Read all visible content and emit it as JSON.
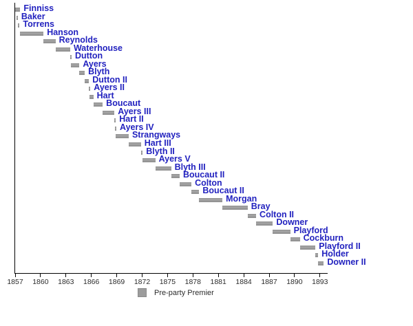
{
  "chart_data": {
    "type": "bar",
    "subtype": "gantt-timeline",
    "title": "",
    "xlabel": "",
    "ylabel": "",
    "x_axis": {
      "min": 1857,
      "max": 1893.9,
      "ticks": [
        1857,
        1860,
        1863,
        1866,
        1869,
        1872,
        1875,
        1878,
        1881,
        1884,
        1887,
        1890,
        1893
      ],
      "tick_labels": [
        "1857",
        "1860",
        "1863",
        "1866",
        "1869",
        "1872",
        "1875",
        "1878",
        "1881",
        "1884",
        "1887",
        "1890",
        "1893"
      ]
    },
    "bars": [
      {
        "label": "Finniss",
        "start": 1857.0,
        "end": 1857.6
      },
      {
        "label": "Baker",
        "start": 1857.15,
        "end": 1857.3
      },
      {
        "label": "Torrens",
        "start": 1857.35,
        "end": 1857.52
      },
      {
        "label": "Hanson",
        "start": 1857.55,
        "end": 1860.35
      },
      {
        "label": "Reynolds",
        "start": 1860.35,
        "end": 1861.77
      },
      {
        "label": "Waterhouse",
        "start": 1861.77,
        "end": 1863.5
      },
      {
        "label": "Dutton",
        "start": 1863.5,
        "end": 1863.55
      },
      {
        "label": "Ayers",
        "start": 1863.55,
        "end": 1864.59
      },
      {
        "label": "Blyth",
        "start": 1864.59,
        "end": 1865.22
      },
      {
        "label": "Dutton II",
        "start": 1865.22,
        "end": 1865.72
      },
      {
        "label": "Ayers II",
        "start": 1865.72,
        "end": 1865.81
      },
      {
        "label": "Hart",
        "start": 1865.81,
        "end": 1866.24
      },
      {
        "label": "Boucaut",
        "start": 1866.24,
        "end": 1867.34
      },
      {
        "label": "Ayers III",
        "start": 1867.34,
        "end": 1868.73
      },
      {
        "label": "Hart II",
        "start": 1868.73,
        "end": 1868.79
      },
      {
        "label": "Ayers IV",
        "start": 1868.79,
        "end": 1868.84
      },
      {
        "label": "Strangways",
        "start": 1868.84,
        "end": 1870.41
      },
      {
        "label": "Hart III",
        "start": 1870.41,
        "end": 1871.86
      },
      {
        "label": "Blyth II",
        "start": 1871.86,
        "end": 1872.06
      },
      {
        "label": "Ayers V",
        "start": 1872.06,
        "end": 1873.55
      },
      {
        "label": "Blyth III",
        "start": 1873.55,
        "end": 1875.42
      },
      {
        "label": "Boucaut II",
        "start": 1875.42,
        "end": 1876.43
      },
      {
        "label": "Colton",
        "start": 1876.43,
        "end": 1877.82
      },
      {
        "label": "Boucaut II",
        "start": 1877.82,
        "end": 1878.74
      },
      {
        "label": "Morgan",
        "start": 1878.74,
        "end": 1881.48
      },
      {
        "label": "Bray",
        "start": 1881.48,
        "end": 1884.46
      },
      {
        "label": "Colton II",
        "start": 1884.46,
        "end": 1885.46
      },
      {
        "label": "Downer",
        "start": 1885.46,
        "end": 1887.44
      },
      {
        "label": "Playford",
        "start": 1887.44,
        "end": 1889.49
      },
      {
        "label": "Cockburn",
        "start": 1889.49,
        "end": 1890.63
      },
      {
        "label": "Playford II",
        "start": 1890.63,
        "end": 1892.47
      },
      {
        "label": "Holder",
        "start": 1892.47,
        "end": 1892.79
      },
      {
        "label": "Downer II",
        "start": 1892.79,
        "end": 1893.45
      }
    ],
    "bar_color": "#9c9c9c",
    "label_color": "#2222bf",
    "legend": {
      "label": "Pre-party Premier",
      "swatch_color": "#9c9c9c",
      "position": "bottom-center"
    },
    "grid": false
  }
}
